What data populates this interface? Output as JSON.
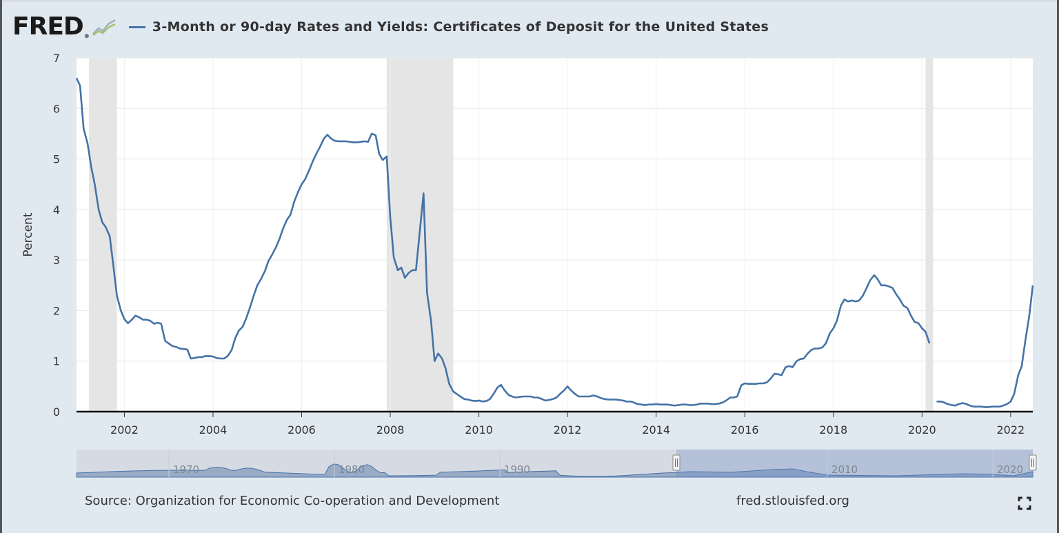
{
  "header": {
    "logo_text": "FRED",
    "logo_mark": "®",
    "logo_icon": "line-graph-icon",
    "series_title": "3-Month or 90-day Rates and Yields: Certificates of Deposit for the United States"
  },
  "footer": {
    "source": "Source: Organization for Economic Co-operation and Development",
    "url": "fred.stlouisfed.org",
    "fullscreen_icon": "fullscreen-icon"
  },
  "colors": {
    "line": "#4572a7",
    "recession": "#e5e5e5",
    "background": "#e1e9f0",
    "plot_bg": "#ffffff"
  },
  "chart_data": {
    "type": "line",
    "title": "3-Month or 90-day Rates and Yields: Certificates of Deposit for the United States",
    "xlabel": "",
    "ylabel": "Percent",
    "xlim": [
      2000.92,
      2022.5
    ],
    "ylim": [
      0,
      7
    ],
    "yticks": [
      "0",
      "1",
      "2",
      "3",
      "4",
      "5",
      "6",
      "7"
    ],
    "xticks": [
      "2002",
      "2004",
      "2006",
      "2008",
      "2010",
      "2012",
      "2014",
      "2016",
      "2018",
      "2020",
      "2022"
    ],
    "grid": true,
    "recessions": [
      [
        2001.2,
        2001.83
      ],
      [
        2007.92,
        2009.42
      ],
      [
        2020.08,
        2020.25
      ]
    ],
    "series": [
      {
        "name": "3-Month or 90-day Rates and Yields: Certificates of Deposit for the United States",
        "segments": [
          [
            [
              2000.92,
              6.6
            ],
            [
              2001.0,
              6.45
            ],
            [
              2001.08,
              5.6
            ],
            [
              2001.17,
              5.3
            ],
            [
              2001.25,
              4.85
            ],
            [
              2001.33,
              4.5
            ],
            [
              2001.42,
              4.0
            ],
            [
              2001.5,
              3.75
            ],
            [
              2001.58,
              3.65
            ],
            [
              2001.67,
              3.47
            ],
            [
              2001.75,
              2.9
            ],
            [
              2001.83,
              2.3
            ],
            [
              2001.92,
              2.0
            ],
            [
              2002.0,
              1.83
            ],
            [
              2002.08,
              1.75
            ],
            [
              2002.17,
              1.82
            ],
            [
              2002.25,
              1.9
            ],
            [
              2002.33,
              1.87
            ],
            [
              2002.42,
              1.82
            ],
            [
              2002.5,
              1.82
            ],
            [
              2002.58,
              1.8
            ],
            [
              2002.67,
              1.74
            ],
            [
              2002.75,
              1.76
            ],
            [
              2002.83,
              1.74
            ],
            [
              2002.92,
              1.4
            ],
            [
              2003.0,
              1.35
            ],
            [
              2003.08,
              1.3
            ],
            [
              2003.17,
              1.28
            ],
            [
              2003.25,
              1.25
            ],
            [
              2003.33,
              1.24
            ],
            [
              2003.42,
              1.23
            ],
            [
              2003.5,
              1.05
            ],
            [
              2003.58,
              1.06
            ],
            [
              2003.67,
              1.08
            ],
            [
              2003.75,
              1.08
            ],
            [
              2003.83,
              1.1
            ],
            [
              2003.92,
              1.1
            ],
            [
              2004.0,
              1.09
            ],
            [
              2004.08,
              1.06
            ],
            [
              2004.17,
              1.05
            ],
            [
              2004.25,
              1.05
            ],
            [
              2004.33,
              1.1
            ],
            [
              2004.42,
              1.22
            ],
            [
              2004.5,
              1.45
            ],
            [
              2004.58,
              1.6
            ],
            [
              2004.67,
              1.68
            ],
            [
              2004.75,
              1.85
            ],
            [
              2004.83,
              2.05
            ],
            [
              2004.92,
              2.3
            ],
            [
              2005.0,
              2.5
            ],
            [
              2005.08,
              2.62
            ],
            [
              2005.17,
              2.78
            ],
            [
              2005.25,
              2.98
            ],
            [
              2005.33,
              3.1
            ],
            [
              2005.42,
              3.25
            ],
            [
              2005.5,
              3.42
            ],
            [
              2005.58,
              3.62
            ],
            [
              2005.67,
              3.8
            ],
            [
              2005.75,
              3.9
            ],
            [
              2005.83,
              4.15
            ],
            [
              2005.92,
              4.35
            ],
            [
              2006.0,
              4.5
            ],
            [
              2006.08,
              4.6
            ],
            [
              2006.17,
              4.78
            ],
            [
              2006.25,
              4.95
            ],
            [
              2006.33,
              5.1
            ],
            [
              2006.42,
              5.25
            ],
            [
              2006.5,
              5.4
            ],
            [
              2006.58,
              5.48
            ],
            [
              2006.67,
              5.4
            ],
            [
              2006.75,
              5.36
            ],
            [
              2006.83,
              5.35
            ],
            [
              2006.92,
              5.35
            ],
            [
              2007.0,
              5.35
            ],
            [
              2007.08,
              5.34
            ],
            [
              2007.17,
              5.33
            ],
            [
              2007.25,
              5.33
            ],
            [
              2007.33,
              5.34
            ],
            [
              2007.42,
              5.35
            ],
            [
              2007.5,
              5.34
            ],
            [
              2007.58,
              5.5
            ],
            [
              2007.67,
              5.47
            ],
            [
              2007.75,
              5.1
            ],
            [
              2007.83,
              4.98
            ],
            [
              2007.92,
              5.05
            ],
            [
              2008.0,
              3.85
            ],
            [
              2008.08,
              3.05
            ],
            [
              2008.17,
              2.8
            ],
            [
              2008.25,
              2.85
            ],
            [
              2008.33,
              2.65
            ],
            [
              2008.42,
              2.75
            ],
            [
              2008.5,
              2.8
            ],
            [
              2008.58,
              2.8
            ],
            [
              2008.67,
              3.6
            ],
            [
              2008.75,
              4.32
            ],
            [
              2008.83,
              2.35
            ],
            [
              2008.92,
              1.8
            ],
            [
              2009.0,
              1.0
            ],
            [
              2009.08,
              1.15
            ],
            [
              2009.17,
              1.05
            ],
            [
              2009.25,
              0.85
            ],
            [
              2009.33,
              0.55
            ],
            [
              2009.42,
              0.4
            ],
            [
              2009.5,
              0.35
            ],
            [
              2009.58,
              0.3
            ],
            [
              2009.67,
              0.25
            ],
            [
              2009.75,
              0.24
            ],
            [
              2009.83,
              0.22
            ],
            [
              2009.92,
              0.21
            ],
            [
              2010.0,
              0.22
            ],
            [
              2010.08,
              0.2
            ],
            [
              2010.17,
              0.21
            ],
            [
              2010.25,
              0.25
            ],
            [
              2010.33,
              0.35
            ],
            [
              2010.42,
              0.48
            ],
            [
              2010.5,
              0.53
            ],
            [
              2010.58,
              0.42
            ],
            [
              2010.67,
              0.33
            ],
            [
              2010.75,
              0.3
            ],
            [
              2010.83,
              0.28
            ],
            [
              2010.92,
              0.29
            ],
            [
              2011.0,
              0.3
            ],
            [
              2011.08,
              0.3
            ],
            [
              2011.17,
              0.3
            ],
            [
              2011.25,
              0.28
            ],
            [
              2011.33,
              0.28
            ],
            [
              2011.42,
              0.25
            ],
            [
              2011.5,
              0.22
            ],
            [
              2011.58,
              0.23
            ],
            [
              2011.67,
              0.25
            ],
            [
              2011.75,
              0.28
            ],
            [
              2011.83,
              0.35
            ],
            [
              2011.92,
              0.42
            ],
            [
              2012.0,
              0.5
            ],
            [
              2012.08,
              0.42
            ],
            [
              2012.17,
              0.35
            ],
            [
              2012.25,
              0.3
            ],
            [
              2012.33,
              0.3
            ],
            [
              2012.42,
              0.3
            ],
            [
              2012.5,
              0.3
            ],
            [
              2012.58,
              0.32
            ],
            [
              2012.67,
              0.3
            ],
            [
              2012.75,
              0.27
            ],
            [
              2012.83,
              0.25
            ],
            [
              2012.92,
              0.24
            ],
            [
              2013.0,
              0.24
            ],
            [
              2013.08,
              0.24
            ],
            [
              2013.17,
              0.23
            ],
            [
              2013.25,
              0.22
            ],
            [
              2013.33,
              0.2
            ],
            [
              2013.42,
              0.2
            ],
            [
              2013.5,
              0.18
            ],
            [
              2013.58,
              0.15
            ],
            [
              2013.67,
              0.14
            ],
            [
              2013.75,
              0.13
            ],
            [
              2013.83,
              0.14
            ],
            [
              2013.92,
              0.14
            ],
            [
              2014.0,
              0.15
            ],
            [
              2014.08,
              0.14
            ],
            [
              2014.17,
              0.14
            ],
            [
              2014.25,
              0.14
            ],
            [
              2014.33,
              0.13
            ],
            [
              2014.42,
              0.12
            ],
            [
              2014.5,
              0.13
            ],
            [
              2014.58,
              0.14
            ],
            [
              2014.67,
              0.14
            ],
            [
              2014.75,
              0.13
            ],
            [
              2014.83,
              0.13
            ],
            [
              2014.92,
              0.14
            ],
            [
              2015.0,
              0.16
            ],
            [
              2015.08,
              0.16
            ],
            [
              2015.17,
              0.16
            ],
            [
              2015.25,
              0.15
            ],
            [
              2015.33,
              0.15
            ],
            [
              2015.42,
              0.16
            ],
            [
              2015.5,
              0.18
            ],
            [
              2015.58,
              0.22
            ],
            [
              2015.67,
              0.28
            ],
            [
              2015.75,
              0.28
            ],
            [
              2015.83,
              0.3
            ],
            [
              2015.92,
              0.52
            ],
            [
              2016.0,
              0.56
            ],
            [
              2016.08,
              0.55
            ],
            [
              2016.17,
              0.55
            ],
            [
              2016.25,
              0.55
            ],
            [
              2016.33,
              0.56
            ],
            [
              2016.42,
              0.56
            ],
            [
              2016.5,
              0.58
            ],
            [
              2016.58,
              0.65
            ],
            [
              2016.67,
              0.75
            ],
            [
              2016.75,
              0.74
            ],
            [
              2016.83,
              0.72
            ],
            [
              2016.92,
              0.88
            ],
            [
              2017.0,
              0.9
            ],
            [
              2017.08,
              0.88
            ],
            [
              2017.17,
              1.0
            ],
            [
              2017.25,
              1.04
            ],
            [
              2017.33,
              1.05
            ],
            [
              2017.42,
              1.15
            ],
            [
              2017.5,
              1.22
            ],
            [
              2017.58,
              1.25
            ],
            [
              2017.67,
              1.25
            ],
            [
              2017.75,
              1.27
            ],
            [
              2017.83,
              1.35
            ],
            [
              2017.92,
              1.55
            ],
            [
              2018.0,
              1.65
            ],
            [
              2018.08,
              1.8
            ],
            [
              2018.17,
              2.1
            ],
            [
              2018.25,
              2.22
            ],
            [
              2018.33,
              2.18
            ],
            [
              2018.42,
              2.2
            ],
            [
              2018.5,
              2.18
            ],
            [
              2018.58,
              2.2
            ],
            [
              2018.67,
              2.3
            ],
            [
              2018.75,
              2.45
            ],
            [
              2018.83,
              2.6
            ],
            [
              2018.92,
              2.7
            ],
            [
              2019.0,
              2.62
            ],
            [
              2019.08,
              2.5
            ],
            [
              2019.17,
              2.5
            ],
            [
              2019.25,
              2.48
            ],
            [
              2019.33,
              2.45
            ],
            [
              2019.42,
              2.32
            ],
            [
              2019.5,
              2.22
            ],
            [
              2019.58,
              2.1
            ],
            [
              2019.67,
              2.05
            ],
            [
              2019.75,
              1.9
            ],
            [
              2019.83,
              1.78
            ],
            [
              2019.92,
              1.75
            ],
            [
              2020.0,
              1.65
            ],
            [
              2020.08,
              1.58
            ],
            [
              2020.17,
              1.35
            ]
          ],
          [
            [
              2020.33,
              0.2
            ],
            [
              2020.42,
              0.2
            ],
            [
              2020.5,
              0.18
            ],
            [
              2020.58,
              0.15
            ],
            [
              2020.67,
              0.13
            ],
            [
              2020.75,
              0.12
            ],
            [
              2020.83,
              0.15
            ],
            [
              2020.92,
              0.17
            ],
            [
              2021.0,
              0.15
            ],
            [
              2021.08,
              0.12
            ],
            [
              2021.17,
              0.1
            ],
            [
              2021.25,
              0.1
            ],
            [
              2021.33,
              0.1
            ],
            [
              2021.42,
              0.09
            ],
            [
              2021.5,
              0.09
            ],
            [
              2021.58,
              0.1
            ],
            [
              2021.67,
              0.1
            ],
            [
              2021.75,
              0.1
            ],
            [
              2021.83,
              0.12
            ],
            [
              2021.92,
              0.15
            ],
            [
              2022.0,
              0.2
            ],
            [
              2022.08,
              0.35
            ],
            [
              2022.17,
              0.72
            ],
            [
              2022.25,
              0.9
            ],
            [
              2022.33,
              1.4
            ],
            [
              2022.42,
              1.9
            ],
            [
              2022.5,
              2.5
            ]
          ]
        ]
      }
    ],
    "navigator": {
      "xticks": [
        "1970",
        "1980",
        "1990",
        "2010",
        "2020"
      ],
      "handle_icon": "drag-handle-icon"
    }
  }
}
